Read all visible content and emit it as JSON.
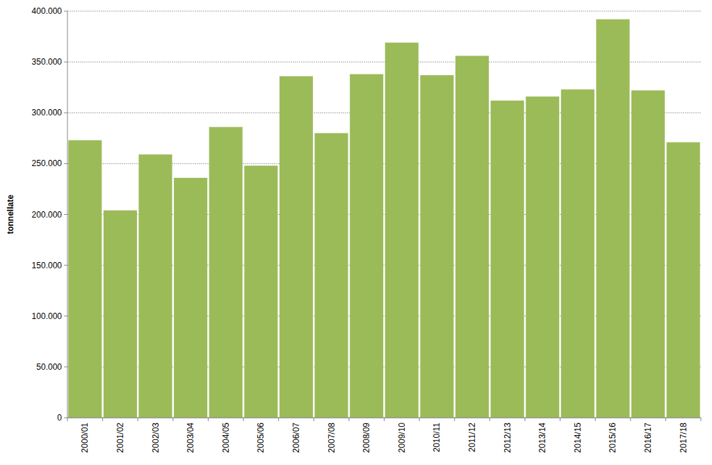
{
  "chart_data": {
    "type": "bar",
    "y_label": "tonnellate",
    "categories": [
      "2000/01",
      "2001/02",
      "2002/03",
      "2003/04",
      "2004/05",
      "2005/06",
      "2006/07",
      "2007/08",
      "2008/09",
      "2009/10",
      "2010/11",
      "2011/12",
      "2012/13",
      "2013/14",
      "2014/15",
      "2015/16",
      "2016/17",
      "2017/18"
    ],
    "values": [
      273000,
      204000,
      259000,
      236000,
      286000,
      248000,
      336000,
      280000,
      338000,
      369000,
      337000,
      356000,
      312000,
      316000,
      323000,
      392000,
      322000,
      271000
    ],
    "color": "#9bbb59",
    "ylim": [
      0,
      400000
    ],
    "yticks": [
      0,
      {
        "value": 50000,
        "label": "50.000"
      },
      {
        "value": 100000,
        "label": "100.000"
      },
      {
        "value": 150000,
        "label": "150.000"
      },
      {
        "value": 200000,
        "label": "200.000"
      },
      {
        "value": 250000,
        "label": "250.000"
      },
      {
        "value": 300000,
        "label": "300.000"
      },
      {
        "value": 350000,
        "label": "350.000"
      },
      {
        "value": 400000,
        "label": "400.000"
      }
    ],
    "grid": true
  }
}
